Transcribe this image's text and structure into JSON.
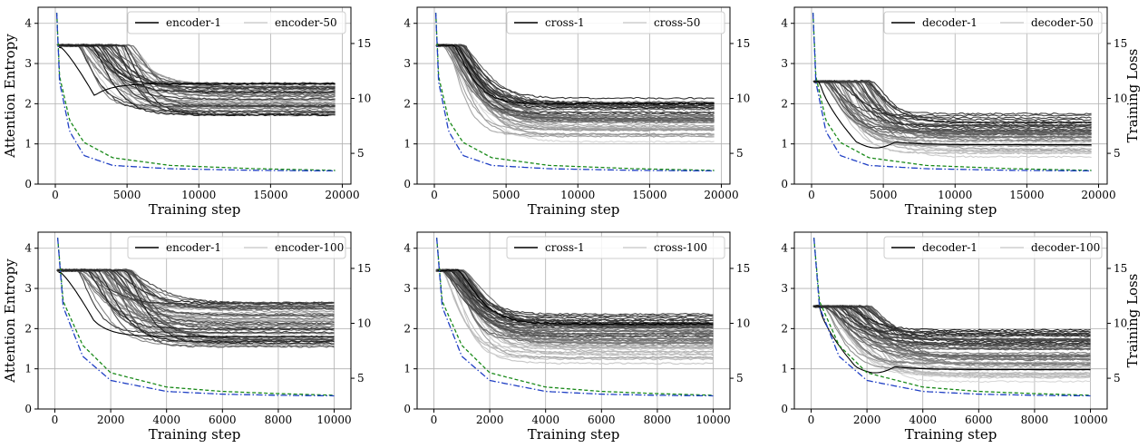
{
  "chart_data": [
    {
      "type": "line",
      "xlabel": "Training step",
      "ylabel": "Attention Entropy",
      "y2label": "",
      "xlim": [
        -1200,
        20600
      ],
      "xticks": [
        0,
        5000,
        10000,
        15000,
        20000
      ],
      "ylim": [
        0,
        4.4
      ],
      "yticks": [
        0,
        1,
        2,
        3,
        4
      ],
      "y2lim": [
        2.2,
        18.3
      ],
      "y2ticks": [
        5,
        10,
        15
      ],
      "grid": true,
      "legend_position": "top",
      "legend": [
        "encoder-1",
        "encoder-50"
      ],
      "gray_curve_count": 50,
      "entropy_start": 3.45,
      "entropy_final_range": [
        1.7,
        2.55
      ],
      "special_first_curve": "dip",
      "loss_dashed": {
        "x": [
          100,
          300,
          1000,
          2000,
          4000,
          8000,
          14000,
          19500
        ],
        "y": [
          17.8,
          12.0,
          8.0,
          6.0,
          4.6,
          3.9,
          3.6,
          3.45
        ]
      },
      "loss_dashdot": {
        "x": [
          100,
          300,
          1000,
          2000,
          4000,
          8000,
          14000,
          19500
        ],
        "y": [
          17.8,
          11.5,
          7.0,
          4.8,
          3.9,
          3.6,
          3.45,
          3.4
        ]
      }
    },
    {
      "type": "line",
      "xlabel": "Training step",
      "ylabel": "",
      "y2label": "",
      "xlim": [
        -1200,
        20600
      ],
      "xticks": [
        0,
        5000,
        10000,
        15000,
        20000
      ],
      "ylim": [
        0,
        4.4
      ],
      "yticks": [
        0,
        1,
        2,
        3,
        4
      ],
      "y2lim": [
        2.2,
        18.3
      ],
      "y2ticks": [
        5,
        10,
        15
      ],
      "grid": true,
      "legend_position": "top-right",
      "legend": [
        "cross-1",
        "cross-50"
      ],
      "gray_curve_count": 50,
      "entropy_start": 3.45,
      "entropy_final_range": [
        1.05,
        2.15
      ],
      "special_first_curve": "none",
      "loss_dashed": {
        "x": [
          100,
          300,
          1000,
          2000,
          4000,
          8000,
          14000,
          19500
        ],
        "y": [
          17.8,
          12.0,
          8.0,
          6.0,
          4.6,
          3.9,
          3.6,
          3.45
        ]
      },
      "loss_dashdot": {
        "x": [
          100,
          300,
          1000,
          2000,
          4000,
          8000,
          14000,
          19500
        ],
        "y": [
          17.8,
          11.5,
          7.0,
          4.8,
          3.9,
          3.6,
          3.45,
          3.4
        ]
      }
    },
    {
      "type": "line",
      "xlabel": "Training step",
      "ylabel": "",
      "y2label": "Training Loss",
      "xlim": [
        -1200,
        20600
      ],
      "xticks": [
        0,
        5000,
        10000,
        15000,
        20000
      ],
      "ylim": [
        0,
        4.4
      ],
      "yticks": [
        0,
        1,
        2,
        3,
        4
      ],
      "y2lim": [
        2.2,
        18.3
      ],
      "y2ticks": [
        5,
        10,
        15
      ],
      "grid": true,
      "legend_position": "top",
      "legend": [
        "decoder-1",
        "decoder-50"
      ],
      "gray_curve_count": 50,
      "entropy_start": 2.55,
      "entropy_final_range": [
        0.6,
        1.8
      ],
      "special_first_curve": "decoder-dip",
      "loss_dashed": {
        "x": [
          100,
          300,
          1000,
          2000,
          4000,
          8000,
          14000,
          19500
        ],
        "y": [
          17.8,
          12.0,
          8.0,
          6.0,
          4.6,
          3.9,
          3.6,
          3.45
        ]
      },
      "loss_dashdot": {
        "x": [
          100,
          300,
          1000,
          2000,
          4000,
          8000,
          14000,
          19500
        ],
        "y": [
          17.8,
          11.5,
          7.0,
          4.8,
          3.9,
          3.6,
          3.45,
          3.4
        ]
      }
    },
    {
      "type": "line",
      "xlabel": "Training step",
      "ylabel": "Attention Entropy",
      "y2label": "",
      "xlim": [
        -600,
        10600
      ],
      "xticks": [
        0,
        2000,
        4000,
        6000,
        8000,
        10000
      ],
      "ylim": [
        0,
        4.4
      ],
      "yticks": [
        0,
        1,
        2,
        3,
        4
      ],
      "y2lim": [
        2.2,
        18.3
      ],
      "y2ticks": [
        5,
        10,
        15
      ],
      "grid": true,
      "legend_position": "top-right",
      "legend": [
        "encoder-1",
        "encoder-100"
      ],
      "gray_curve_count": 60,
      "entropy_start": 3.45,
      "entropy_final_range": [
        1.55,
        2.65
      ],
      "special_first_curve": "dip",
      "loss_dashed": {
        "x": [
          100,
          300,
          1000,
          2000,
          4000,
          6000,
          8000,
          10000
        ],
        "y": [
          17.8,
          12.0,
          8.0,
          5.5,
          4.2,
          3.8,
          3.6,
          3.45
        ]
      },
      "loss_dashdot": {
        "x": [
          100,
          300,
          1000,
          2000,
          4000,
          6000,
          8000,
          10000
        ],
        "y": [
          17.8,
          11.5,
          7.0,
          4.8,
          3.8,
          3.55,
          3.45,
          3.4
        ]
      }
    },
    {
      "type": "line",
      "xlabel": "Training step",
      "ylabel": "",
      "y2label": "",
      "xlim": [
        -600,
        10600
      ],
      "xticks": [
        0,
        2000,
        4000,
        6000,
        8000,
        10000
      ],
      "ylim": [
        0,
        4.4
      ],
      "yticks": [
        0,
        1,
        2,
        3,
        4
      ],
      "y2lim": [
        2.2,
        18.3
      ],
      "y2ticks": [
        5,
        10,
        15
      ],
      "grid": true,
      "legend_position": "top-right",
      "legend": [
        "cross-1",
        "cross-100"
      ],
      "gray_curve_count": 60,
      "entropy_start": 3.45,
      "entropy_final_range": [
        1.1,
        2.4
      ],
      "special_first_curve": "none",
      "loss_dashed": {
        "x": [
          100,
          300,
          1000,
          2000,
          4000,
          6000,
          8000,
          10000
        ],
        "y": [
          17.8,
          12.0,
          8.0,
          5.5,
          4.2,
          3.8,
          3.6,
          3.45
        ]
      },
      "loss_dashdot": {
        "x": [
          100,
          300,
          1000,
          2000,
          4000,
          6000,
          8000,
          10000
        ],
        "y": [
          17.8,
          11.5,
          7.0,
          4.8,
          3.8,
          3.55,
          3.45,
          3.4
        ]
      }
    },
    {
      "type": "line",
      "xlabel": "Training step",
      "ylabel": "",
      "y2label": "Training Loss",
      "xlim": [
        -600,
        10600
      ],
      "xticks": [
        0,
        2000,
        4000,
        6000,
        8000,
        10000
      ],
      "ylim": [
        0,
        4.4
      ],
      "yticks": [
        0,
        1,
        2,
        3,
        4
      ],
      "y2lim": [
        2.2,
        18.3
      ],
      "y2ticks": [
        5,
        10,
        15
      ],
      "grid": true,
      "legend_position": "top-right",
      "legend": [
        "decoder-1",
        "decoder-100"
      ],
      "gray_curve_count": 60,
      "entropy_start": 2.55,
      "entropy_final_range": [
        0.6,
        2.05
      ],
      "special_first_curve": "decoder-dip",
      "loss_dashed": {
        "x": [
          100,
          300,
          1000,
          2000,
          4000,
          6000,
          8000,
          10000
        ],
        "y": [
          17.8,
          12.0,
          8.0,
          5.5,
          4.2,
          3.8,
          3.6,
          3.45
        ]
      },
      "loss_dashdot": {
        "x": [
          100,
          300,
          1000,
          2000,
          4000,
          6000,
          8000,
          10000
        ],
        "y": [
          17.8,
          11.5,
          7.0,
          4.8,
          3.8,
          3.55,
          3.45,
          3.4
        ]
      }
    }
  ],
  "colors": {
    "loss_dashed": "#1a8a1a",
    "loss_dashdot": "#1f3fc4",
    "curve_dark": "#000000",
    "curve_light": "#d0d0d0",
    "grid": "#b0b0b0"
  }
}
